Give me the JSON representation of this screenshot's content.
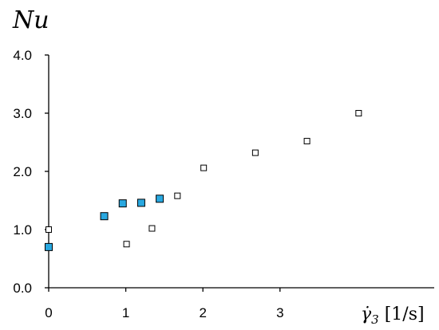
{
  "chart_data": {
    "type": "scatter",
    "ylabel": "Nu",
    "xlabel": {
      "symbol": "γ̇",
      "subscript": "3",
      "unit": "[1/s]"
    },
    "xlim": [
      0,
      5
    ],
    "ylim": [
      0,
      4
    ],
    "xticks": [
      0,
      1,
      2,
      3
    ],
    "xtick_labels": [
      "0",
      "1",
      "2",
      "3"
    ],
    "yticks": [
      0,
      1,
      2,
      3,
      4
    ],
    "ytick_labels": [
      "0.0",
      "1.0",
      "2.0",
      "3.0",
      "4.0"
    ],
    "grid": false,
    "legend": "none",
    "series": [
      {
        "marker": "open-square",
        "color": "#000000",
        "fill": "#ffffff",
        "x": [
          0.0,
          1.01,
          1.34,
          1.67,
          2.01,
          2.68,
          3.35,
          4.02
        ],
        "y": [
          1.0,
          0.75,
          1.02,
          1.58,
          2.06,
          2.32,
          2.52,
          3.0
        ]
      },
      {
        "marker": "filled-square",
        "color": "#000000",
        "fill": "#29a8e0",
        "x": [
          0.0,
          0.72,
          0.96,
          1.2,
          1.44
        ],
        "y": [
          0.7,
          1.23,
          1.45,
          1.46,
          1.53
        ]
      }
    ]
  }
}
